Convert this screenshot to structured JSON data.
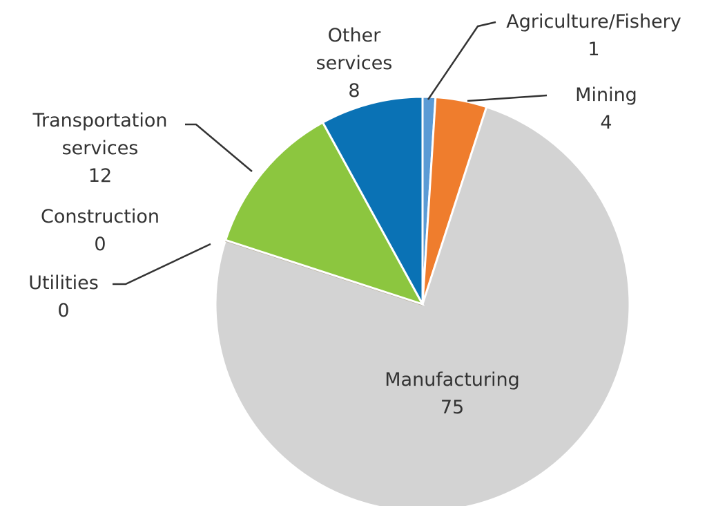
{
  "chart_data": {
    "type": "pie",
    "categories": [
      "Agriculture/Fishery",
      "Mining",
      "Manufacturing",
      "Utilities",
      "Construction",
      "Transportation services",
      "Other services"
    ],
    "values": [
      1,
      4,
      75,
      0,
      0,
      12,
      8
    ],
    "colors": [
      "#5b9bd5",
      "#ef7d2d",
      "#d3d3d3",
      "#f4b41a",
      "#a5a5a5",
      "#8cc63f",
      "#0a72b5"
    ]
  }
}
